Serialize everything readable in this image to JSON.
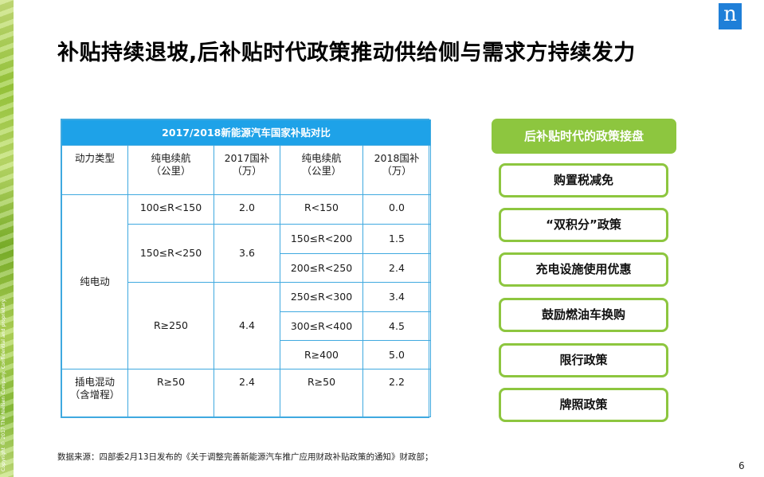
{
  "slide": {
    "title": "补贴持续退坡,后补贴时代政策推动供给侧与需求方持续发力",
    "copyright": "Copyright © 2017 The Nielsen Company. Confidential and proprietary.",
    "logo_letter": "n",
    "page_number": "6",
    "source": "数据来源：四部委2月13日发布的《关于调整完善新能源汽车推广应用财政补贴政策的通知》财政部；",
    "colors": {
      "table_header": "#1ea2e8",
      "table_border": "#3fa9e0",
      "policy_green": "#8dc63f",
      "logo_blue": "#1f7fd8"
    }
  },
  "table": {
    "title": "2017/2018新能源汽车国家补贴对比",
    "headers": [
      "动力类型",
      "纯电续航\n（公里）",
      "2017国补\n（万）",
      "纯电续航\n（公里）",
      "2018国补\n（万）"
    ],
    "bev": {
      "type": "纯电动",
      "groups": [
        {
          "range_2017": "100≤R<150",
          "subsidy_2017": "2.0",
          "rows_2018": [
            {
              "range": "R<150",
              "subsidy": "0.0"
            }
          ]
        },
        {
          "range_2017": "150≤R<250",
          "subsidy_2017": "3.6",
          "rows_2018": [
            {
              "range": "150≤R<200",
              "subsidy": "1.5"
            },
            {
              "range": "200≤R<250",
              "subsidy": "2.4"
            }
          ]
        },
        {
          "range_2017": "R≥250",
          "subsidy_2017": "4.4",
          "rows_2018": [
            {
              "range": "250≤R<300",
              "subsidy": "3.4"
            },
            {
              "range": "300≤R<400",
              "subsidy": "4.5"
            },
            {
              "range": "R≥400",
              "subsidy": "5.0"
            }
          ]
        }
      ]
    },
    "phev": {
      "type": "插电混动\n（含增程）",
      "range_2017": "R≥50",
      "subsidy_2017": "2.4",
      "range_2018": "R≥50",
      "subsidy_2018": "2.2"
    }
  },
  "policies": {
    "header": "后补贴时代的政策接盘",
    "items": [
      "购置税减免",
      "“双积分”政策",
      "充电设施使用优惠",
      "鼓励燃油车换购",
      "限行政策",
      "牌照政策"
    ]
  }
}
